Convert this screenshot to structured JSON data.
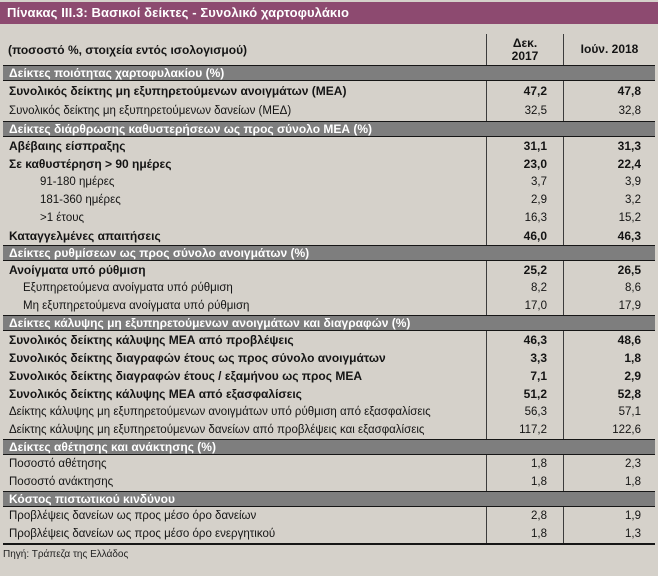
{
  "title": "Πίνακας III.3: Βασικοί δείκτες - Συνολικό χαρτοφυλάκιο",
  "columns": {
    "label": "(ποσοστό %, στοιχεία εντός ισολογισμού)",
    "col1": "Δεκ. 2017",
    "col2": "Ιούν. 2018"
  },
  "sections": [
    {
      "header": "Δείκτες ποιότητας χαρτοφυλακίου (%)",
      "rows": [
        {
          "label": "Συνολικός δείκτης μη εξυπηρετούμενων ανοιγμάτων (ΜΕΑ)",
          "dec2017": "47,2",
          "jun2018": "47,8",
          "style": "bold"
        },
        {
          "label": "Συνολικός δείκτης μη εξυπηρετούμενων δανείων (ΜΕΔ)",
          "dec2017": "32,5",
          "jun2018": "32,8",
          "style": "plain"
        }
      ]
    },
    {
      "header": "Δείκτες διάρθρωσης καθυστερήσεων ως προς σύνολο ΜΕΑ (%)",
      "rows": [
        {
          "label": "Αβέβαιης είσπραξης",
          "dec2017": "31,1",
          "jun2018": "31,3",
          "style": "bold"
        },
        {
          "label": "Σε καθυστέρηση > 90 ημέρες",
          "dec2017": "23,0",
          "jun2018": "22,4",
          "style": "bold"
        },
        {
          "label": "91-180 ημέρες",
          "dec2017": "3,7",
          "jun2018": "3,9",
          "style": "subsub"
        },
        {
          "label": "181-360 ημέρες",
          "dec2017": "2,9",
          "jun2018": "3,2",
          "style": "subsub"
        },
        {
          "label": ">1 έτους",
          "dec2017": "16,3",
          "jun2018": "15,2",
          "style": "subsub"
        },
        {
          "label": "Καταγγελμένες απαιτήσεις",
          "dec2017": "46,0",
          "jun2018": "46,3",
          "style": "bold"
        }
      ]
    },
    {
      "header": "Δείκτες ρυθμίσεων ως προς σύνολο ανοιγμάτων (%)",
      "rows": [
        {
          "label": "Ανοίγματα υπό ρύθμιση",
          "dec2017": "25,2",
          "jun2018": "26,5",
          "style": "bold"
        },
        {
          "label": "Εξυπηρετούμενα ανοίγματα υπό ρύθμιση",
          "dec2017": "8,2",
          "jun2018": "8,6",
          "style": "sub"
        },
        {
          "label": "Μη εξυπηρετούμενα ανοίγματα υπό ρύθμιση",
          "dec2017": "17,0",
          "jun2018": "17,9",
          "style": "sub"
        }
      ]
    },
    {
      "header": "Δείκτες κάλυψης μη εξυπηρετούμενων ανοιγμάτων και διαγραφών (%)",
      "rows": [
        {
          "label": "Συνολικός δείκτης κάλυψης ΜΕΑ από προβλέψεις",
          "dec2017": "46,3",
          "jun2018": "48,6",
          "style": "bold"
        },
        {
          "label": "Συνολικός δείκτης διαγραφών έτους ως προς σύνολο ανοιγμάτων",
          "dec2017": "3,3",
          "jun2018": "1,8",
          "style": "bold"
        },
        {
          "label": "Συνολικός δείκτης διαγραφών έτους / εξαμήνου ως προς ΜΕΑ",
          "dec2017": "7,1",
          "jun2018": "2,9",
          "style": "bold"
        },
        {
          "label": "Συνολικός δείκτης κάλυψης ΜΕΑ από εξασφαλίσεις",
          "dec2017": "51,2",
          "jun2018": "52,8",
          "style": "bold"
        },
        {
          "label": "Δείκτης κάλυψης μη εξυπηρετούμενων ανοιγμάτων υπό ρύθμιση από εξασφαλίσεις",
          "dec2017": "56,3",
          "jun2018": "57,1",
          "style": "plain"
        },
        {
          "label": "Δείκτης κάλυψης μη εξυπηρετούμενων δανείων από προβλέψεις και εξασφαλίσεις",
          "dec2017": "117,2",
          "jun2018": "122,6",
          "style": "plain"
        }
      ]
    },
    {
      "header": "Δείκτες αθέτησης και ανάκτησης (%)",
      "rows": [
        {
          "label": "Ποσοστό αθέτησης",
          "dec2017": "1,8",
          "jun2018": "2,3",
          "style": "plain"
        },
        {
          "label": "Ποσοστό ανάκτησης",
          "dec2017": "1,8",
          "jun2018": "1,8",
          "style": "plain"
        }
      ]
    },
    {
      "header": "Κόστος πιστωτικού κινδύνου",
      "rows": [
        {
          "label": "Προβλέψεις δανείων ως προς μέσο όρο δανείων",
          "dec2017": "2,8",
          "jun2018": "1,9",
          "style": "plain"
        },
        {
          "label": "Προβλέψεις δανείων ως προς μέσο όρο ενεργητικού",
          "dec2017": "1,8",
          "jun2018": "1,3",
          "style": "plain"
        }
      ]
    }
  ],
  "footer": "Πηγή: Τράπεζα της Ελλάδος",
  "colors": {
    "title_bar": "#8d4a70",
    "section_bar": "#7e7e7e",
    "background": "#d5d1ca",
    "divider": "#3c3c3c",
    "rule": "#161616"
  }
}
